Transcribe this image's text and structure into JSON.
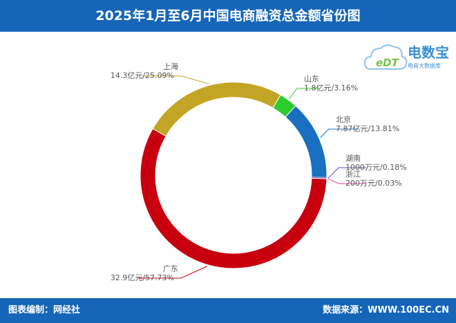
{
  "header": {
    "title": "2025年1月至6月中国电商融资总金额省份图"
  },
  "footer": {
    "left": "图表编制：网经社",
    "right": "数据来源：WWW.100EC.CN"
  },
  "logo": {
    "name": "电数宝",
    "sub": "电商大数据库",
    "mark": "eDT"
  },
  "chart_data": {
    "type": "pie",
    "title": "2025年1月至6月中国电商融资总金额省份图",
    "donut": true,
    "unit": "亿元",
    "slices": [
      {
        "name": "上海",
        "value": 14.3,
        "percent": 25.09,
        "label": "14.3亿元/25.09%",
        "color": "#c4a424"
      },
      {
        "name": "山东",
        "value": 1.8,
        "percent": 3.16,
        "label": "1.8亿元/3.16%",
        "color": "#2ecc2e"
      },
      {
        "name": "北京",
        "value": 7.87,
        "percent": 13.81,
        "label": "7.87亿元/13.81%",
        "color": "#1a6fc0"
      },
      {
        "name": "湖南",
        "value": 0.1,
        "percent": 0.18,
        "label": "1000万元/0.18%",
        "color": "#6a3fa0"
      },
      {
        "name": "浙江",
        "value": 0.02,
        "percent": 0.03,
        "label": "200万元/0.03%",
        "color": "#e040a0"
      },
      {
        "name": "广东",
        "value": 32.9,
        "percent": 57.73,
        "label": "32.9亿元/57.73%",
        "color": "#c8000e"
      }
    ]
  }
}
